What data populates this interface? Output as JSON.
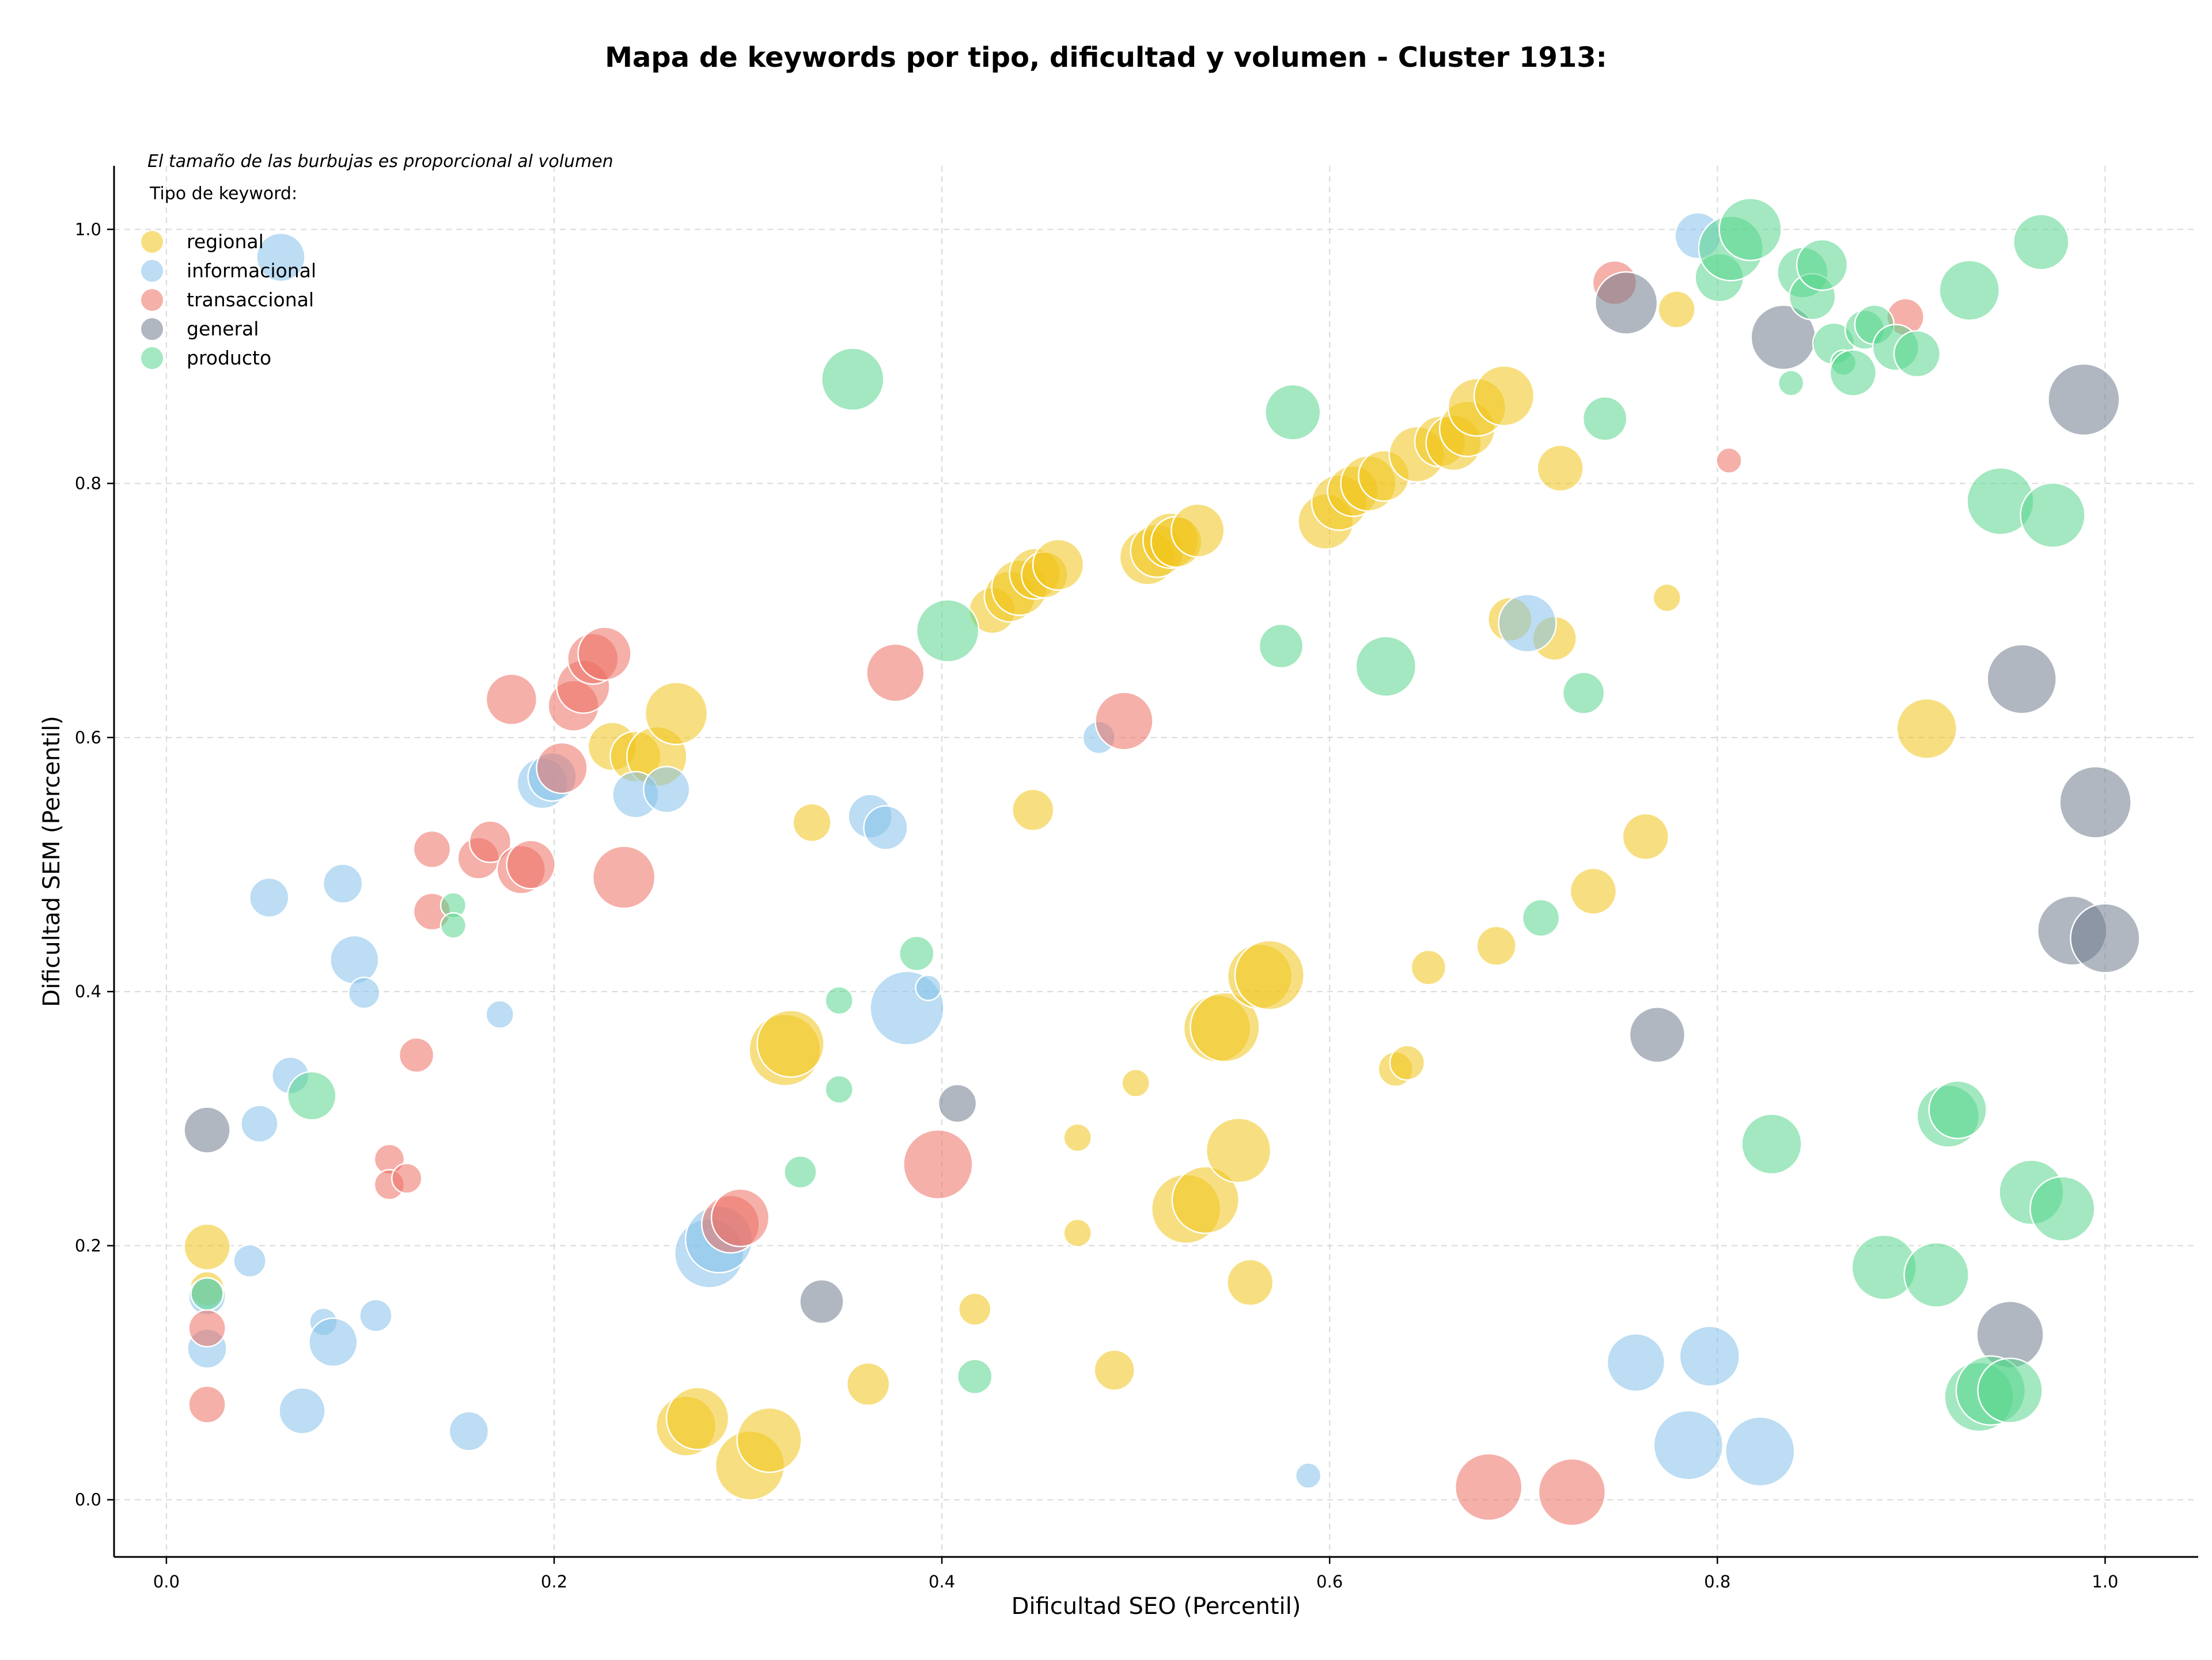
{
  "chart_data": {
    "type": "scatter",
    "title": "Mapa de keywords por tipo, dificultad y volumen - Cluster 1913:",
    "xlabel": "Dificultad SEO (Percentil)",
    "ylabel": "Dificultad SEM (Percentil)",
    "xlim": [
      -0.027,
      1.048
    ],
    "ylim": [
      -0.045,
      1.05
    ],
    "x_ticks": [
      "0.0",
      "0.2",
      "0.4",
      "0.6",
      "0.8",
      "1.0"
    ],
    "y_ticks": [
      "0.0",
      "0.2",
      "0.4",
      "0.6",
      "0.8",
      "1.0"
    ],
    "grid": true,
    "note": "El tamaño de las burbujas es proporcional al volumen",
    "legend_title": "Tipo de keyword:",
    "legend_position": "top-left",
    "series": [
      {
        "name": "regional",
        "color": "#f0c419",
        "points": [
          [
            0.021,
            0.199,
            40
          ],
          [
            0.021,
            0.166,
            30
          ],
          [
            0.23,
            0.593,
            42
          ],
          [
            0.242,
            0.585,
            44
          ],
          [
            0.253,
            0.585,
            52
          ],
          [
            0.263,
            0.619,
            54
          ],
          [
            0.268,
            0.058,
            52
          ],
          [
            0.274,
            0.064,
            54
          ],
          [
            0.301,
            0.027,
            60
          ],
          [
            0.311,
            0.047,
            56
          ],
          [
            0.319,
            0.354,
            62
          ],
          [
            0.322,
            0.359,
            58
          ],
          [
            0.333,
            0.533,
            33
          ],
          [
            0.362,
            0.091,
            37
          ],
          [
            0.417,
            0.15,
            28
          ],
          [
            0.426,
            0.7,
            40
          ],
          [
            0.435,
            0.711,
            44
          ],
          [
            0.44,
            0.718,
            48
          ],
          [
            0.448,
            0.729,
            44
          ],
          [
            0.453,
            0.728,
            40
          ],
          [
            0.46,
            0.736,
            44
          ],
          [
            0.447,
            0.543,
            36
          ],
          [
            0.47,
            0.285,
            24
          ],
          [
            0.47,
            0.21,
            24
          ],
          [
            0.489,
            0.102,
            35
          ],
          [
            0.5,
            0.328,
            24
          ],
          [
            0.506,
            0.742,
            48
          ],
          [
            0.511,
            0.747,
            46
          ],
          [
            0.518,
            0.755,
            48
          ],
          [
            0.521,
            0.754,
            44
          ],
          [
            0.532,
            0.763,
            46
          ],
          [
            0.526,
            0.229,
            60
          ],
          [
            0.536,
            0.236,
            58
          ],
          [
            0.542,
            0.371,
            58
          ],
          [
            0.546,
            0.372,
            60
          ],
          [
            0.553,
            0.275,
            56
          ],
          [
            0.559,
            0.171,
            40
          ],
          [
            0.564,
            0.412,
            56
          ],
          [
            0.569,
            0.413,
            60
          ],
          [
            0.598,
            0.77,
            48
          ],
          [
            0.605,
            0.785,
            48
          ],
          [
            0.612,
            0.794,
            44
          ],
          [
            0.62,
            0.8,
            48
          ],
          [
            0.628,
            0.806,
            44
          ],
          [
            0.634,
            0.339,
            30
          ],
          [
            0.64,
            0.344,
            30
          ],
          [
            0.645,
            0.823,
            48
          ],
          [
            0.651,
            0.419,
            30
          ],
          [
            0.657,
            0.833,
            44
          ],
          [
            0.664,
            0.832,
            48
          ],
          [
            0.671,
            0.843,
            48
          ],
          [
            0.676,
            0.86,
            50
          ],
          [
            0.69,
            0.869,
            52
          ],
          [
            0.686,
            0.436,
            34
          ],
          [
            0.693,
            0.693,
            38
          ],
          [
            0.716,
            0.678,
            38
          ],
          [
            0.719,
            0.812,
            40
          ],
          [
            0.736,
            0.479,
            40
          ],
          [
            0.763,
            0.522,
            40
          ],
          [
            0.774,
            0.71,
            24
          ],
          [
            0.779,
            0.937,
            32
          ],
          [
            0.908,
            0.607,
            52
          ]
        ]
      },
      {
        "name": "informacional",
        "color": "#85c1e9",
        "points": [
          [
            0.021,
            0.119,
            34
          ],
          [
            0.021,
            0.16,
            32
          ],
          [
            0.043,
            0.188,
            28
          ],
          [
            0.048,
            0.296,
            32
          ],
          [
            0.053,
            0.474,
            34
          ],
          [
            0.059,
            0.978,
            42
          ],
          [
            0.064,
            0.334,
            32
          ],
          [
            0.07,
            0.07,
            40
          ],
          [
            0.081,
            0.14,
            24
          ],
          [
            0.086,
            0.124,
            42
          ],
          [
            0.091,
            0.485,
            34
          ],
          [
            0.097,
            0.425,
            42
          ],
          [
            0.102,
            0.399,
            27
          ],
          [
            0.108,
            0.145,
            28
          ],
          [
            0.156,
            0.054,
            34
          ],
          [
            0.172,
            0.382,
            24
          ],
          [
            0.194,
            0.564,
            44
          ],
          [
            0.199,
            0.569,
            42
          ],
          [
            0.242,
            0.555,
            40
          ],
          [
            0.258,
            0.559,
            40
          ],
          [
            0.28,
            0.194,
            60
          ],
          [
            0.285,
            0.205,
            58
          ],
          [
            0.363,
            0.538,
            38
          ],
          [
            0.371,
            0.529,
            38
          ],
          [
            0.382,
            0.387,
            64
          ],
          [
            0.393,
            0.403,
            22
          ],
          [
            0.481,
            0.6,
            28
          ],
          [
            0.589,
            0.019,
            22
          ],
          [
            0.702,
            0.69,
            50
          ],
          [
            0.758,
            0.108,
            50
          ],
          [
            0.785,
            0.043,
            60
          ],
          [
            0.79,
            0.995,
            40
          ],
          [
            0.796,
            0.113,
            52
          ],
          [
            0.822,
            0.038,
            60
          ]
        ]
      },
      {
        "name": "transaccional",
        "color": "#ec7063",
        "points": [
          [
            0.021,
            0.135,
            32
          ],
          [
            0.021,
            0.075,
            32
          ],
          [
            0.115,
            0.268,
            26
          ],
          [
            0.115,
            0.248,
            26
          ],
          [
            0.124,
            0.253,
            26
          ],
          [
            0.129,
            0.35,
            30
          ],
          [
            0.137,
            0.512,
            32
          ],
          [
            0.137,
            0.463,
            32
          ],
          [
            0.161,
            0.505,
            36
          ],
          [
            0.167,
            0.518,
            36
          ],
          [
            0.178,
            0.63,
            44
          ],
          [
            0.183,
            0.496,
            42
          ],
          [
            0.188,
            0.5,
            42
          ],
          [
            0.204,
            0.576,
            44
          ],
          [
            0.21,
            0.625,
            44
          ],
          [
            0.215,
            0.64,
            46
          ],
          [
            0.22,
            0.662,
            44
          ],
          [
            0.226,
            0.666,
            46
          ],
          [
            0.236,
            0.49,
            54
          ],
          [
            0.291,
            0.217,
            50
          ],
          [
            0.296,
            0.222,
            50
          ],
          [
            0.376,
            0.651,
            50
          ],
          [
            0.398,
            0.264,
            60
          ],
          [
            0.494,
            0.613,
            50
          ],
          [
            0.682,
            0.01,
            58
          ],
          [
            0.725,
            0.006,
            58
          ],
          [
            0.747,
            0.958,
            38
          ],
          [
            0.806,
            0.818,
            22
          ],
          [
            0.897,
            0.931,
            32
          ]
        ]
      },
      {
        "name": "general",
        "color": "#707b8c",
        "points": [
          [
            0.021,
            0.291,
            40
          ],
          [
            0.338,
            0.156,
            38
          ],
          [
            0.408,
            0.312,
            33
          ],
          [
            0.753,
            0.942,
            54
          ],
          [
            0.769,
            0.366,
            48
          ],
          [
            0.834,
            0.915,
            56
          ],
          [
            0.951,
            0.13,
            58
          ],
          [
            0.957,
            0.646,
            60
          ],
          [
            0.983,
            0.448,
            60
          ],
          [
            0.989,
            0.866,
            62
          ],
          [
            0.995,
            0.549,
            62
          ],
          [
            1.0,
            0.442,
            60
          ]
        ]
      },
      {
        "name": "producto",
        "color": "#58d68d",
        "points": [
          [
            0.021,
            0.162,
            28
          ],
          [
            0.075,
            0.318,
            42
          ],
          [
            0.148,
            0.468,
            22
          ],
          [
            0.148,
            0.452,
            22
          ],
          [
            0.327,
            0.258,
            28
          ],
          [
            0.347,
            0.393,
            24
          ],
          [
            0.347,
            0.323,
            24
          ],
          [
            0.354,
            0.882,
            54
          ],
          [
            0.387,
            0.43,
            30
          ],
          [
            0.403,
            0.684,
            54
          ],
          [
            0.417,
            0.097,
            30
          ],
          [
            0.575,
            0.672,
            38
          ],
          [
            0.581,
            0.856,
            48
          ],
          [
            0.629,
            0.656,
            52
          ],
          [
            0.709,
            0.458,
            32
          ],
          [
            0.731,
            0.635,
            36
          ],
          [
            0.742,
            0.851,
            38
          ],
          [
            0.801,
            0.962,
            42
          ],
          [
            0.807,
            0.985,
            56
          ],
          [
            0.817,
            1.0,
            54
          ],
          [
            0.838,
            0.879,
            22
          ],
          [
            0.844,
            0.966,
            44
          ],
          [
            0.849,
            0.947,
            40
          ],
          [
            0.854,
            0.972,
            44
          ],
          [
            0.86,
            0.91,
            36
          ],
          [
            0.865,
            0.895,
            22
          ],
          [
            0.87,
            0.887,
            40
          ],
          [
            0.876,
            0.921,
            34
          ],
          [
            0.881,
            0.925,
            34
          ],
          [
            0.886,
            0.183,
            56
          ],
          [
            0.892,
            0.907,
            40
          ],
          [
            0.903,
            0.902,
            40
          ],
          [
            0.913,
            0.177,
            56
          ],
          [
            0.919,
            0.302,
            54
          ],
          [
            0.924,
            0.307,
            50
          ],
          [
            0.93,
            0.952,
            52
          ],
          [
            0.935,
            0.081,
            60
          ],
          [
            0.941,
            0.086,
            60
          ],
          [
            0.946,
            0.786,
            58
          ],
          [
            0.951,
            0.086,
            56
          ],
          [
            0.962,
            0.242,
            56
          ],
          [
            0.967,
            0.99,
            48
          ],
          [
            0.973,
            0.775,
            56
          ],
          [
            0.978,
            0.229,
            56
          ],
          [
            0.828,
            0.28,
            52
          ]
        ]
      }
    ]
  }
}
